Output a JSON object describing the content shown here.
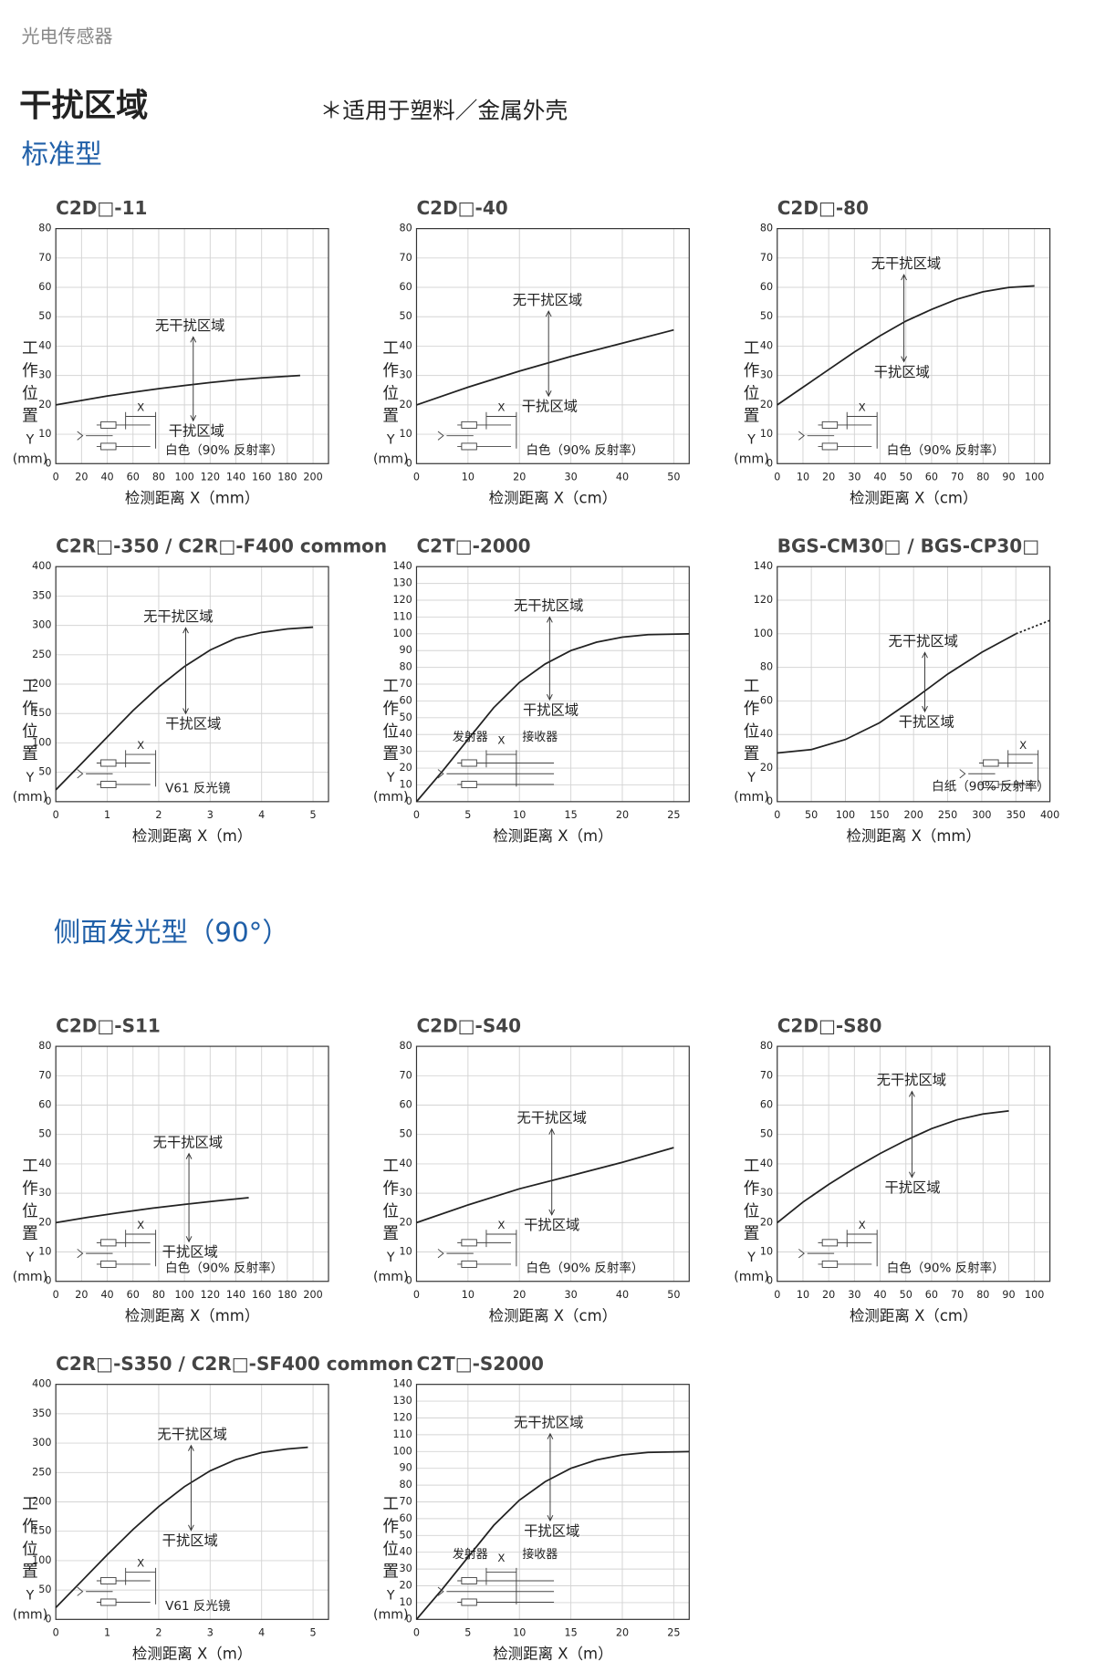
{
  "header": {
    "category": "光电传感器",
    "title": "干扰区域",
    "note": "＊适用于塑料／金属外壳"
  },
  "sections": [
    {
      "title": "标准型"
    },
    {
      "title": "侧面发光型（90°）"
    }
  ],
  "chart_data": [
    {
      "type": "line",
      "title": "C2D□-11",
      "xlabel": "检测距离 X（mm）",
      "ylabel": [
        "工",
        "作",
        "位",
        "置",
        "Y",
        "(mm)"
      ],
      "xlim": [
        0,
        212
      ],
      "xticks": [
        0,
        20,
        40,
        60,
        80,
        100,
        120,
        140,
        160,
        180,
        200
      ],
      "ylim": [
        0,
        80
      ],
      "yticks": [
        0,
        10,
        20,
        30,
        40,
        50,
        60,
        70,
        80
      ],
      "x": [
        0,
        20,
        40,
        60,
        80,
        100,
        120,
        140,
        160,
        190
      ],
      "series": [
        {
          "color": "#222222",
          "values": [
            20,
            21.5,
            23,
            24.3,
            25.5,
            26.6,
            27.6,
            28.5,
            29.2,
            30
          ]
        }
      ],
      "annotations": [
        "无干扰区域",
        "干扰区域"
      ],
      "target": "白色（90% 反射率）",
      "diagram": [
        "X"
      ]
    },
    {
      "type": "line",
      "title": "C2D□-40",
      "xlabel": "检测距离 X（cm）",
      "ylabel": [
        "工",
        "作",
        "位",
        "置",
        "Y",
        "(mm)"
      ],
      "xlim": [
        0,
        53
      ],
      "xticks": [
        0,
        10,
        20,
        30,
        40,
        50
      ],
      "ylim": [
        0,
        80
      ],
      "yticks": [
        0,
        10,
        20,
        30,
        40,
        50,
        60,
        70,
        80
      ],
      "x": [
        0,
        10,
        20,
        30,
        40,
        50
      ],
      "series": [
        {
          "color": "#222222",
          "values": [
            20,
            26,
            31.5,
            36.5,
            41,
            45.5
          ]
        }
      ],
      "annotations": [
        "无干扰区域",
        "干扰区域"
      ],
      "target": "白色（90% 反射率）",
      "diagram": [
        "X"
      ]
    },
    {
      "type": "line",
      "title": "C2D□-80",
      "xlabel": "检测距离 X（cm）",
      "ylabel": [
        "工",
        "作",
        "位",
        "置",
        "Y",
        "(mm)"
      ],
      "xlim": [
        0,
        106
      ],
      "xticks": [
        0,
        10,
        20,
        30,
        40,
        50,
        60,
        70,
        80,
        90,
        100
      ],
      "ylim": [
        0,
        80
      ],
      "yticks": [
        0,
        10,
        20,
        30,
        40,
        50,
        60,
        70,
        80
      ],
      "x": [
        0,
        10,
        20,
        30,
        40,
        50,
        60,
        70,
        80,
        90,
        100
      ],
      "series": [
        {
          "color": "#222222",
          "values": [
            20,
            26,
            32,
            38,
            43.5,
            48.5,
            52.5,
            56,
            58.5,
            60,
            60.5
          ]
        }
      ],
      "annotations": [
        "无干扰区域",
        "干扰区域"
      ],
      "target": "白色（90% 反射率）",
      "diagram": [
        "X"
      ]
    },
    {
      "type": "line",
      "title": "C2R□-350 / C2R□-F400 common",
      "xlabel": "检测距离 X（m）",
      "ylabel": [
        "工",
        "作",
        "位",
        "置",
        "Y",
        "(mm)"
      ],
      "xlim": [
        0,
        5.3
      ],
      "xticks": [
        0,
        1,
        2,
        3,
        4,
        5
      ],
      "ylim": [
        0,
        400
      ],
      "yticks": [
        0,
        50,
        100,
        150,
        200,
        250,
        300,
        350,
        400
      ],
      "x": [
        0,
        0.5,
        1,
        1.5,
        2,
        2.5,
        3,
        3.5,
        4,
        4.5,
        5
      ],
      "series": [
        {
          "color": "#222222",
          "values": [
            20,
            65,
            110,
            155,
            195,
            230,
            258,
            278,
            288,
            294,
            297
          ]
        }
      ],
      "annotations": [
        "无干扰区域",
        "干扰区域"
      ],
      "target": "V61 反光镜",
      "diagram": [
        "X"
      ]
    },
    {
      "type": "line",
      "title": "C2T□-2000",
      "xlabel": "检测距离 X（m）",
      "ylabel": [
        "工",
        "作",
        "位",
        "置",
        "Y",
        "(mm)"
      ],
      "xlim": [
        0,
        26.5
      ],
      "xticks": [
        0,
        5,
        10,
        15,
        20,
        25
      ],
      "ylim": [
        0,
        140
      ],
      "yticks": [
        0,
        10,
        20,
        30,
        40,
        50,
        60,
        70,
        80,
        90,
        100,
        110,
        120,
        130,
        140
      ],
      "x": [
        0,
        2.5,
        5,
        7.5,
        10,
        12.5,
        15,
        17.5,
        20,
        22.5,
        26.5
      ],
      "series": [
        {
          "color": "#222222",
          "values": [
            0,
            18,
            37,
            56,
            71,
            82,
            90,
            95,
            98,
            99.5,
            100
          ]
        }
      ],
      "annotations": [
        "无干扰区域",
        "干扰区域"
      ],
      "diagram": [
        "发射器",
        "X",
        "接收器"
      ]
    },
    {
      "type": "line",
      "title": "BGS-CM30□ / BGS-CP30□",
      "xlabel": "检测距离 X（mm）",
      "ylabel": [
        "工",
        "作",
        "位",
        "置",
        "Y",
        "(mm)"
      ],
      "xlim": [
        0,
        400
      ],
      "xticks": [
        0,
        50,
        100,
        150,
        200,
        250,
        300,
        350,
        400
      ],
      "ylim": [
        0,
        140
      ],
      "yticks": [
        0,
        20,
        40,
        60,
        80,
        100,
        120,
        140
      ],
      "x": [
        0,
        50,
        100,
        150,
        200,
        250,
        300,
        350,
        400
      ],
      "series": [
        {
          "color": "#222222",
          "values": [
            29,
            31,
            37,
            47,
            61,
            76,
            89,
            100,
            null
          ]
        },
        {
          "color": "#222222",
          "style": "dotted",
          "values": [
            null,
            null,
            null,
            null,
            null,
            null,
            null,
            100,
            108
          ]
        }
      ],
      "annotations": [
        "无干扰区域",
        "干扰区域"
      ],
      "target": "白纸（90% 反射率）",
      "diagram": [
        "X"
      ]
    },
    {
      "type": "line",
      "title": "C2D□-S11",
      "xlabel": "检测距离 X（mm）",
      "ylabel": [
        "工",
        "作",
        "位",
        "置",
        "Y",
        "(mm)"
      ],
      "xlim": [
        0,
        212
      ],
      "xticks": [
        0,
        20,
        40,
        60,
        80,
        100,
        120,
        140,
        160,
        180,
        200
      ],
      "ylim": [
        0,
        80
      ],
      "yticks": [
        0,
        10,
        20,
        30,
        40,
        50,
        60,
        70,
        80
      ],
      "x": [
        0,
        25,
        50,
        75,
        100,
        125,
        150
      ],
      "series": [
        {
          "color": "#222222",
          "values": [
            20,
            21.8,
            23.4,
            24.9,
            26.2,
            27.4,
            28.5
          ]
        }
      ],
      "annotations": [
        "无干扰区域",
        "干扰区域"
      ],
      "target": "白色（90% 反射率）",
      "diagram": [
        "X"
      ]
    },
    {
      "type": "line",
      "title": "C2D□-S40",
      "xlabel": "检测距离 X（cm）",
      "ylabel": [
        "工",
        "作",
        "位",
        "置",
        "Y",
        "(mm)"
      ],
      "xlim": [
        0,
        53
      ],
      "xticks": [
        0,
        10,
        20,
        30,
        40,
        50
      ],
      "ylim": [
        0,
        80
      ],
      "yticks": [
        0,
        10,
        20,
        30,
        40,
        50,
        60,
        70,
        80
      ],
      "x": [
        0,
        10,
        20,
        30,
        40,
        50
      ],
      "series": [
        {
          "color": "#222222",
          "values": [
            20,
            26,
            31.5,
            36,
            40.5,
            45.5
          ]
        }
      ],
      "annotations": [
        "无干扰区域",
        "干扰区域"
      ],
      "target": "白色（90% 反射率）",
      "diagram": [
        "X"
      ]
    },
    {
      "type": "line",
      "title": "C2D□-S80",
      "xlabel": "检测距离 X（cm）",
      "ylabel": [
        "工",
        "作",
        "位",
        "置",
        "Y",
        "(mm)"
      ],
      "xlim": [
        0,
        106
      ],
      "xticks": [
        0,
        10,
        20,
        30,
        40,
        50,
        60,
        70,
        80,
        90,
        100
      ],
      "ylim": [
        0,
        80
      ],
      "yticks": [
        0,
        10,
        20,
        30,
        40,
        50,
        60,
        70,
        80
      ],
      "x": [
        0,
        10,
        20,
        30,
        40,
        50,
        60,
        70,
        80,
        90
      ],
      "series": [
        {
          "color": "#222222",
          "values": [
            20,
            27,
            33,
            38.5,
            43.5,
            48,
            52,
            55,
            57,
            58
          ]
        }
      ],
      "annotations": [
        "无干扰区域",
        "干扰区域"
      ],
      "target": "白色（90% 反射率）",
      "diagram": [
        "X"
      ]
    },
    {
      "type": "line",
      "title": "C2R□-S350 / C2R□-SF400 common",
      "xlabel": "检测距离 X（m）",
      "ylabel": [
        "工",
        "作",
        "位",
        "置",
        "Y",
        "(mm)"
      ],
      "xlim": [
        0,
        5.3
      ],
      "xticks": [
        0,
        1,
        2,
        3,
        4,
        5
      ],
      "ylim": [
        0,
        400
      ],
      "yticks": [
        0,
        50,
        100,
        150,
        200,
        250,
        300,
        350,
        400
      ],
      "x": [
        0,
        0.5,
        1,
        1.5,
        2,
        2.5,
        3,
        3.5,
        4,
        4.5,
        4.9
      ],
      "series": [
        {
          "color": "#222222",
          "values": [
            20,
            65,
            110,
            153,
            192,
            226,
            253,
            272,
            284,
            290,
            293
          ]
        }
      ],
      "annotations": [
        "无干扰区域",
        "干扰区域"
      ],
      "target": "V61 反光镜",
      "diagram": [
        "X"
      ]
    },
    {
      "type": "line",
      "title": "C2T□-S2000",
      "xlabel": "检测距离 X（m）",
      "ylabel": [
        "工",
        "作",
        "位",
        "置",
        "Y",
        "(mm)"
      ],
      "xlim": [
        0,
        26.5
      ],
      "xticks": [
        0,
        5,
        10,
        15,
        20,
        25
      ],
      "ylim": [
        0,
        140
      ],
      "yticks": [
        0,
        10,
        20,
        30,
        40,
        50,
        60,
        70,
        80,
        90,
        100,
        110,
        120,
        130,
        140
      ],
      "x": [
        0,
        2.5,
        5,
        7.5,
        10,
        12.5,
        15,
        17.5,
        20,
        22.5,
        26.5
      ],
      "series": [
        {
          "color": "#222222",
          "values": [
            0,
            18,
            37,
            56,
            71,
            82,
            90,
            95,
            98,
            99.5,
            100
          ]
        }
      ],
      "annotations": [
        "无干扰区域",
        "干扰区域"
      ],
      "diagram": [
        "发射器",
        "X",
        "接收器"
      ]
    }
  ]
}
